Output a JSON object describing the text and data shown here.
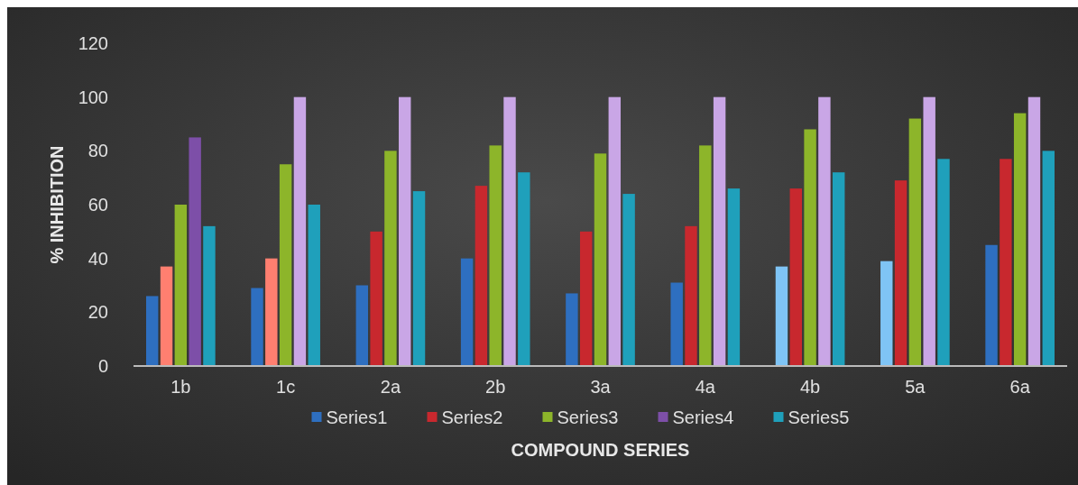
{
  "chart_data": {
    "type": "bar",
    "xlabel": "COMPOUND SERIES",
    "ylabel": "% INHIBITION",
    "categories": [
      "1b",
      "1c",
      "2a",
      "2b",
      "3a",
      "4a",
      "4b",
      "5a",
      "6a"
    ],
    "series": [
      {
        "name": "Series1",
        "color": "#2e6fc0",
        "colors": [
          "#2e6fc0",
          "#2e6fc0",
          "#2e6fc0",
          "#2e6fc0",
          "#2e6fc0",
          "#2e6fc0",
          "#7fc4f5",
          "#7fc4f5",
          "#2e6fc0"
        ],
        "values": [
          26,
          29,
          30,
          40,
          27,
          31,
          37,
          39,
          45
        ]
      },
      {
        "name": "Series2",
        "color": "#c8282e",
        "colors": [
          "#ff7f70",
          "#ff7f70",
          "#c8282e",
          "#c8282e",
          "#c8282e",
          "#c8282e",
          "#c8282e",
          "#c8282e",
          "#c8282e"
        ],
        "values": [
          37,
          40,
          50,
          67,
          50,
          52,
          66,
          69,
          77
        ]
      },
      {
        "name": "Series3",
        "color": "#8db52a",
        "values": [
          60,
          75,
          80,
          82,
          79,
          82,
          88,
          92,
          94
        ]
      },
      {
        "name": "Series4",
        "color": "#7d4fa8",
        "colors": [
          "#7d4fa8",
          "#c9a6e6",
          "#c9a6e6",
          "#c9a6e6",
          "#c9a6e6",
          "#c9a6e6",
          "#c9a6e6",
          "#c9a6e6",
          "#c9a6e6"
        ],
        "values": [
          85,
          100,
          100,
          100,
          100,
          100,
          100,
          100,
          100
        ]
      },
      {
        "name": "Series5",
        "color": "#1fa0bb",
        "values": [
          52,
          60,
          65,
          72,
          64,
          66,
          72,
          77,
          80
        ]
      }
    ],
    "ylim": [
      0,
      120
    ],
    "yticks": [
      0,
      20,
      40,
      60,
      80,
      100,
      120
    ],
    "legend": "bottom"
  }
}
